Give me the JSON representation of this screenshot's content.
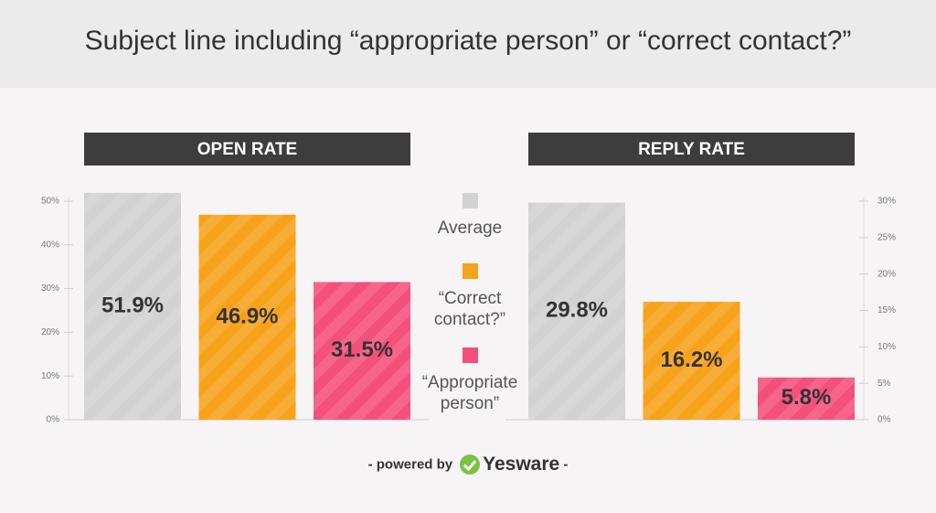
{
  "title": "Subject line including “appropriate person” or “correct contact?”",
  "legend": [
    {
      "label": "Average",
      "color": "#d2d2d2"
    },
    {
      "label": "“Correct contact?”",
      "color": "#f7a21b"
    },
    {
      "label": "“Appropriate person”",
      "color": "#f4507c"
    }
  ],
  "chart_data": [
    {
      "type": "bar",
      "title": "OPEN RATE",
      "values": [
        51.9,
        46.9,
        31.5
      ],
      "value_labels": [
        "51.9%",
        "46.9%",
        "31.5%"
      ],
      "ylim": [
        0,
        50
      ],
      "yticks": [
        {
          "value": 0,
          "label": "0%"
        },
        {
          "value": 10,
          "label": "10%"
        },
        {
          "value": 20,
          "label": "20%"
        },
        {
          "value": 30,
          "label": "30%"
        },
        {
          "value": 40,
          "label": "40%"
        },
        {
          "value": 50,
          "label": "50%"
        }
      ],
      "axis_side": "left"
    },
    {
      "type": "bar",
      "title": "REPLY RATE",
      "values": [
        29.8,
        16.2,
        5.8
      ],
      "value_labels": [
        "29.8%",
        "16.2%",
        "5.8%"
      ],
      "ylim": [
        0,
        30
      ],
      "yticks": [
        {
          "value": 0,
          "label": "0%"
        },
        {
          "value": 5,
          "label": "5%"
        },
        {
          "value": 10,
          "label": "10%"
        },
        {
          "value": 15,
          "label": "15%"
        },
        {
          "value": 20,
          "label": "20%"
        },
        {
          "value": 25,
          "label": "25%"
        },
        {
          "value": 30,
          "label": "30%"
        }
      ],
      "axis_side": "right"
    }
  ],
  "footer": {
    "prefix": "- powered by",
    "brand": "Yesware",
    "suffix": "-"
  }
}
